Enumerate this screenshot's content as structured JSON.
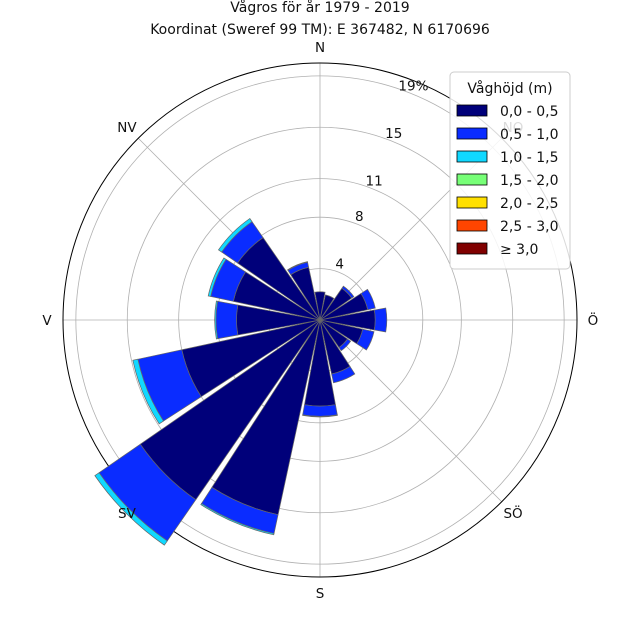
{
  "chart_data": {
    "type": "windrose",
    "title": "Vågros för år 1979 - 2019",
    "subtitle": "Koordinat (Sweref 99 TM): E 367482, N 6170696",
    "direction_labels": [
      "N",
      "NO",
      "Ö",
      "SÖ",
      "S",
      "SV",
      "V",
      "NV"
    ],
    "direction_angles_deg": [
      0,
      45,
      90,
      135,
      180,
      225,
      270,
      315
    ],
    "ring_values": [
      4,
      8,
      11,
      15,
      19
    ],
    "ring_labels": [
      "4",
      "8",
      "11",
      "15",
      "19%"
    ],
    "rmax": 20,
    "sector_width_deg": 22.5,
    "legend": {
      "title": "Våghöjd (m)",
      "placement": "top-right",
      "entries": [
        {
          "label": "0,0 - 0,5",
          "color": "#00007a"
        },
        {
          "label": "0,5 - 1,0",
          "color": "#0a2cff"
        },
        {
          "label": "1,0 - 1,5",
          "color": "#10d8ff"
        },
        {
          "label": "1,5 - 2,0",
          "color": "#77ff77"
        },
        {
          "label": "2,0 - 2,5",
          "color": "#ffe000"
        },
        {
          "label": "2,5 - 3,0",
          "color": "#ff4500"
        },
        {
          "label": "≥ 3,0",
          "color": "#800000"
        }
      ]
    },
    "sectors": [
      {
        "dir": 0,
        "values": [
          2.2,
          0.0,
          0.0,
          0,
          0,
          0,
          0
        ]
      },
      {
        "dir": 22.5,
        "values": [
          2.0,
          0.0,
          0.0,
          0,
          0,
          0,
          0
        ]
      },
      {
        "dir": 45,
        "values": [
          3.0,
          0.2,
          0.0,
          0,
          0,
          0,
          0
        ]
      },
      {
        "dir": 67.5,
        "values": [
          3.8,
          0.6,
          0.0,
          0,
          0,
          0,
          0
        ]
      },
      {
        "dir": 90,
        "values": [
          4.3,
          0.9,
          0.0,
          0,
          0,
          0,
          0
        ]
      },
      {
        "dir": 112.5,
        "values": [
          3.4,
          0.9,
          0.0,
          0,
          0,
          0,
          0
        ]
      },
      {
        "dir": 135,
        "values": [
          2.6,
          0.3,
          0.0,
          0,
          0,
          0,
          0
        ]
      },
      {
        "dir": 157.5,
        "values": [
          4.3,
          0.7,
          0.0,
          0,
          0,
          0,
          0
        ]
      },
      {
        "dir": 180,
        "values": [
          6.7,
          0.8,
          0.05,
          0,
          0,
          0,
          0
        ]
      },
      {
        "dir": 202.5,
        "values": [
          15.5,
          1.5,
          0.1,
          0,
          0,
          0,
          0
        ]
      },
      {
        "dir": 225,
        "values": [
          17.0,
          3.9,
          0.4,
          0,
          0,
          0,
          0
        ]
      },
      {
        "dir": 247.5,
        "values": [
          11.0,
          3.5,
          0.4,
          0,
          0,
          0,
          0
        ]
      },
      {
        "dir": 270,
        "values": [
          6.5,
          1.6,
          0.1,
          0,
          0,
          0,
          0
        ]
      },
      {
        "dir": 292.5,
        "values": [
          6.9,
          1.8,
          0.2,
          0,
          0,
          0,
          0
        ]
      },
      {
        "dir": 315,
        "values": [
          7.8,
          1.5,
          0.3,
          0,
          0,
          0,
          0
        ]
      },
      {
        "dir": 337.5,
        "values": [
          4.2,
          0.4,
          0.05,
          0,
          0,
          0,
          0
        ]
      }
    ]
  }
}
